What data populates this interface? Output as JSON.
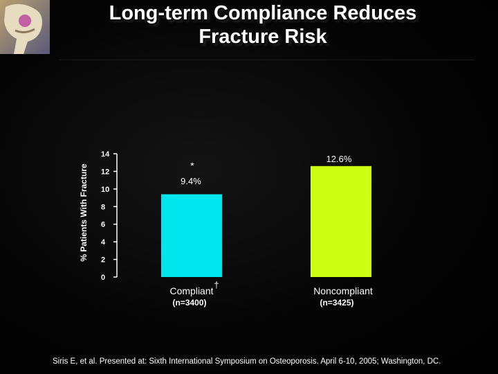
{
  "slide": {
    "title_line1": "Long-term Compliance Reduces",
    "title_line2": "Fracture Risk",
    "citation": "Siris E, et al. Presented at: Sixth International Symposium on Osteoporosis. April 6-10, 2005; Washington, DC."
  },
  "chart_data": {
    "type": "bar",
    "categories": [
      "Compliant",
      "Noncompliant"
    ],
    "category_notes": [
      "(n=3400)",
      "(n=3425)"
    ],
    "category_marks": [
      "†",
      ""
    ],
    "values": [
      9.4,
      12.6
    ],
    "data_labels": [
      "9.4%",
      "12.6%"
    ],
    "annotations": [
      "*",
      ""
    ],
    "ylabel": "% Patients With Fracture",
    "xlabel": "",
    "ylim": [
      0,
      14
    ],
    "yticks": [
      0,
      2,
      4,
      6,
      8,
      10,
      12,
      14
    ],
    "grid": false,
    "colors": [
      "#00e6ee",
      "#ccff11"
    ]
  }
}
